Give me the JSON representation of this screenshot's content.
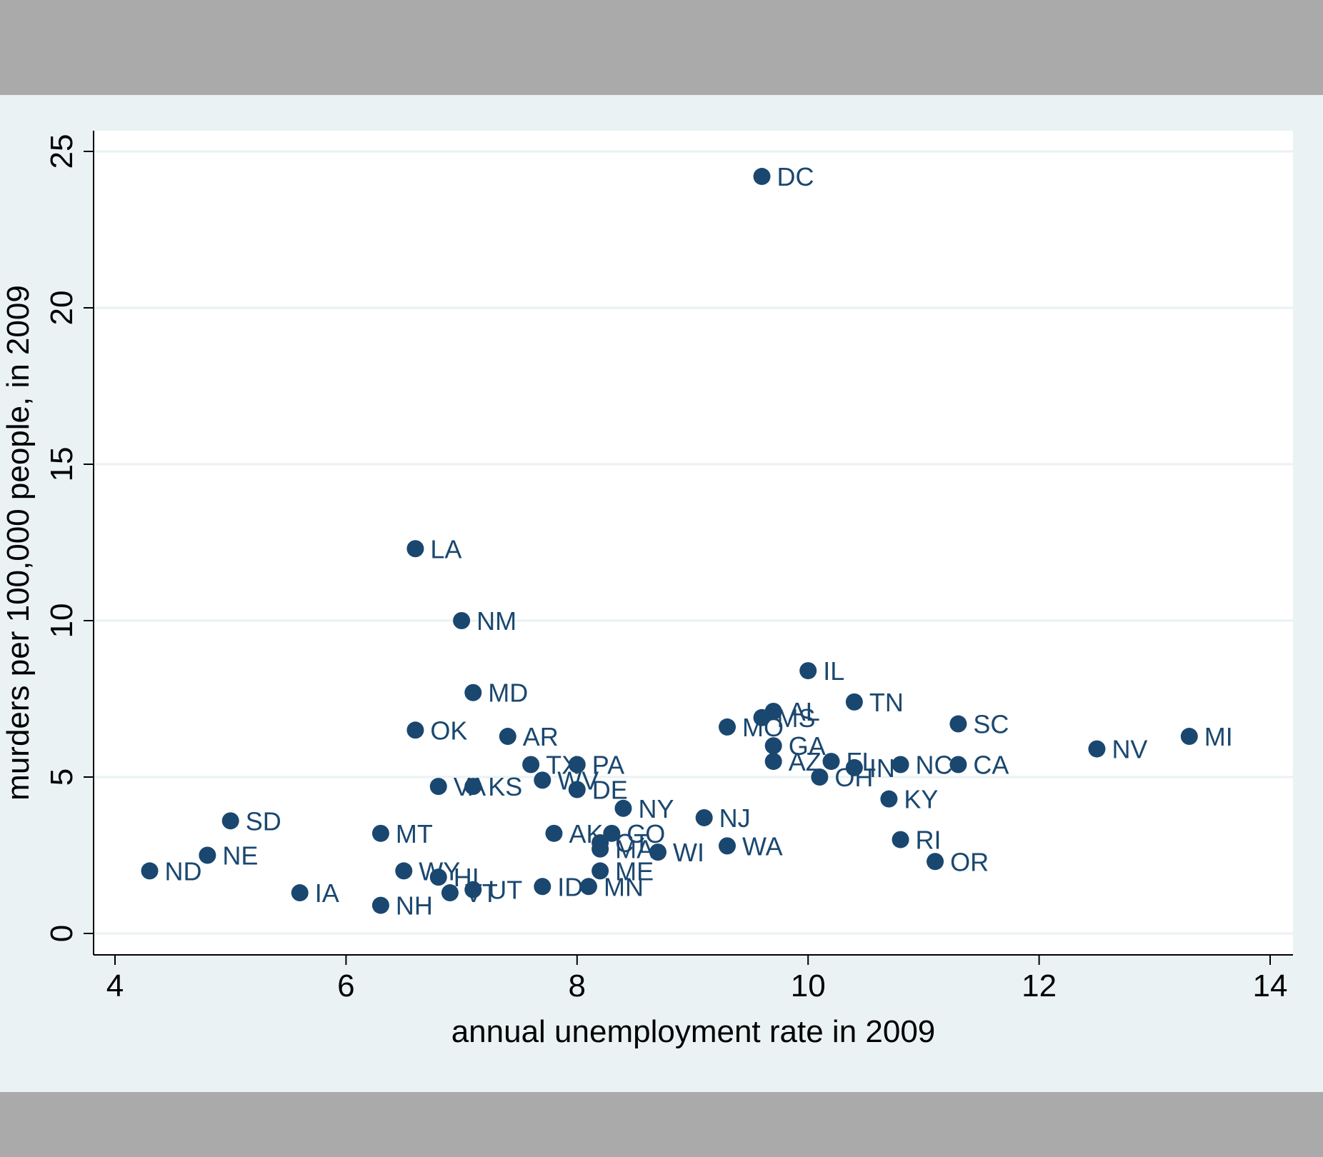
{
  "colors": {
    "outer_band": "#aaaaaa",
    "graph_region": "#eaf2f3",
    "plot_region": "#ffffff",
    "gridline": "#eaf2f3",
    "marker": "#1a476f",
    "axis": "#000000"
  },
  "chart_data": {
    "type": "scatter",
    "title": "",
    "xlabel": "annual unemployment rate in 2009",
    "ylabel": "murders per 100,000 people, in 2009",
    "xlim": [
      4,
      14
    ],
    "ylim": [
      0,
      25
    ],
    "xticks": [
      4,
      6,
      8,
      10,
      12,
      14
    ],
    "yticks": [
      0,
      5,
      10,
      15,
      20,
      25
    ],
    "grid": "horizontal",
    "legend": "none",
    "marker_color": "#1a476f",
    "label_position": "right",
    "points": [
      {
        "label": "DC",
        "x": 9.6,
        "y": 24.2
      },
      {
        "label": "LA",
        "x": 6.6,
        "y": 12.3
      },
      {
        "label": "NM",
        "x": 7.0,
        "y": 10.0
      },
      {
        "label": "IL",
        "x": 10.0,
        "y": 8.4
      },
      {
        "label": "MD",
        "x": 7.1,
        "y": 7.7
      },
      {
        "label": "TN",
        "x": 10.4,
        "y": 7.4
      },
      {
        "label": "AL",
        "x": 9.7,
        "y": 7.1
      },
      {
        "label": "MS",
        "x": 9.6,
        "y": 6.9
      },
      {
        "label": "SC",
        "x": 11.3,
        "y": 6.7
      },
      {
        "label": "MO",
        "x": 9.3,
        "y": 6.6
      },
      {
        "label": "OK",
        "x": 6.6,
        "y": 6.5
      },
      {
        "label": "AR",
        "x": 7.4,
        "y": 6.3
      },
      {
        "label": "MI",
        "x": 13.3,
        "y": 6.3
      },
      {
        "label": "GA",
        "x": 9.7,
        "y": 6.0
      },
      {
        "label": "NV",
        "x": 12.5,
        "y": 5.9
      },
      {
        "label": "AZ",
        "x": 9.7,
        "y": 5.5
      },
      {
        "label": "FL",
        "x": 10.2,
        "y": 5.5
      },
      {
        "label": "TX",
        "x": 7.6,
        "y": 5.4
      },
      {
        "label": "PA",
        "x": 8.0,
        "y": 5.4
      },
      {
        "label": "NC",
        "x": 10.8,
        "y": 5.4
      },
      {
        "label": "CA",
        "x": 11.3,
        "y": 5.4
      },
      {
        "label": "IN",
        "x": 10.4,
        "y": 5.3
      },
      {
        "label": "OH",
        "x": 10.1,
        "y": 5.0
      },
      {
        "label": "WV",
        "x": 7.7,
        "y": 4.9
      },
      {
        "label": "VA",
        "x": 6.8,
        "y": 4.7
      },
      {
        "label": "KS",
        "x": 7.1,
        "y": 4.7
      },
      {
        "label": "DE",
        "x": 8.0,
        "y": 4.6
      },
      {
        "label": "KY",
        "x": 10.7,
        "y": 4.3
      },
      {
        "label": "NY",
        "x": 8.4,
        "y": 4.0
      },
      {
        "label": "NJ",
        "x": 9.1,
        "y": 3.7
      },
      {
        "label": "SD",
        "x": 5.0,
        "y": 3.6
      },
      {
        "label": "MT",
        "x": 6.3,
        "y": 3.2
      },
      {
        "label": "AK",
        "x": 7.8,
        "y": 3.2
      },
      {
        "label": "CO",
        "x": 8.3,
        "y": 3.2
      },
      {
        "label": "RI",
        "x": 10.8,
        "y": 3.0
      },
      {
        "label": "CT",
        "x": 8.2,
        "y": 2.9
      },
      {
        "label": "WA",
        "x": 9.3,
        "y": 2.8
      },
      {
        "label": "MA",
        "x": 8.2,
        "y": 2.7
      },
      {
        "label": "WI",
        "x": 8.7,
        "y": 2.6
      },
      {
        "label": "NE",
        "x": 4.8,
        "y": 2.5
      },
      {
        "label": "OR",
        "x": 11.1,
        "y": 2.3
      },
      {
        "label": "ND",
        "x": 4.3,
        "y": 2.0
      },
      {
        "label": "WY",
        "x": 6.5,
        "y": 2.0
      },
      {
        "label": "ME",
        "x": 8.2,
        "y": 2.0
      },
      {
        "label": "HI",
        "x": 6.8,
        "y": 1.8
      },
      {
        "label": "ID",
        "x": 7.7,
        "y": 1.5
      },
      {
        "label": "MN",
        "x": 8.1,
        "y": 1.5
      },
      {
        "label": "UT",
        "x": 7.1,
        "y": 1.4
      },
      {
        "label": "VT",
        "x": 6.9,
        "y": 1.3
      },
      {
        "label": "IA",
        "x": 5.6,
        "y": 1.3
      },
      {
        "label": "NH",
        "x": 6.3,
        "y": 0.9
      }
    ]
  }
}
